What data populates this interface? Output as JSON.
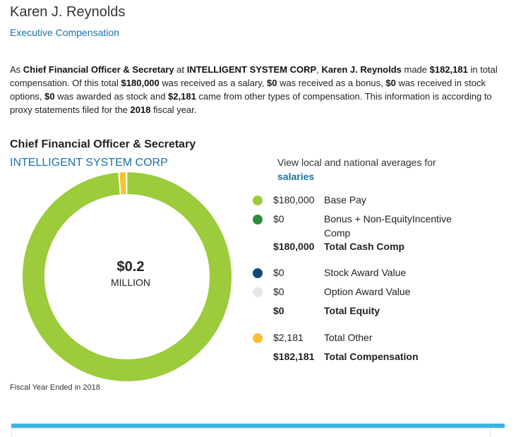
{
  "header": {
    "name": "Karen J. Reynolds",
    "subtitle": "Executive Compensation"
  },
  "summary": {
    "p1": "As ",
    "title": "Chief Financial Officer & Secretary",
    "p2": " at ",
    "company": "INTELLIGENT SYSTEM CORP",
    "p3": ", ",
    "person": "Karen J. Reynolds",
    "p4": " made ",
    "total": "$182,181",
    "p5": " in total compensation. Of this total ",
    "salary": "$180,000",
    "p6": " was received as a salary, ",
    "bonus": "$0",
    "p7": " was received as a bonus, ",
    "options": "$0",
    "p8": " was received in stock options, ",
    "stock": "$0",
    "p9": " was awarded as stock and ",
    "other": "$2,181",
    "p10": " came from other types of compensation. This information is according to proxy statements filed for the ",
    "year": "2018",
    "p11": " fiscal year."
  },
  "section": {
    "title": "Chief Financial Officer & Secretary",
    "company": "INTELLIGENT SYSTEM CORP"
  },
  "donut": {
    "center_value": "$0.2",
    "center_unit": "MILLION"
  },
  "averages": {
    "text": "View local and national averages for",
    "link": "salaries"
  },
  "legend": {
    "base_pay": {
      "value": "$180,000",
      "label": "Base Pay",
      "color": "#9ccb3b"
    },
    "bonus": {
      "value": "$0",
      "label1": "Bonus + Non-EquityIncentive",
      "label2": "Comp",
      "color": "#2e8b3e"
    },
    "total_cash": {
      "value": "$180,000",
      "label": "Total Cash Comp"
    },
    "stock_award": {
      "value": "$0",
      "label": "Stock Award Value",
      "color": "#0d4a7a"
    },
    "option_award": {
      "value": "$0",
      "label": "Option Award Value",
      "color": "#e6e6e6"
    },
    "total_equity": {
      "value": "$0",
      "label": "Total Equity"
    },
    "total_other": {
      "value": "$2,181",
      "label": "Total Other",
      "color": "#f5c12e"
    },
    "total_comp": {
      "value": "$182,181",
      "label": "Total Compensation"
    }
  },
  "chart_data": {
    "type": "pie",
    "categories": [
      "Base Pay",
      "Bonus + Non-EquityIncentive Comp",
      "Stock Award Value",
      "Option Award Value",
      "Total Other"
    ],
    "values": [
      180000,
      0,
      0,
      0,
      2181
    ],
    "colors": [
      "#9ccb3b",
      "#2e8b3e",
      "#0d4a7a",
      "#e6e6e6",
      "#f5c12e"
    ]
  },
  "footer": {
    "fiscal": "Fiscal Year Ended in 2018"
  }
}
